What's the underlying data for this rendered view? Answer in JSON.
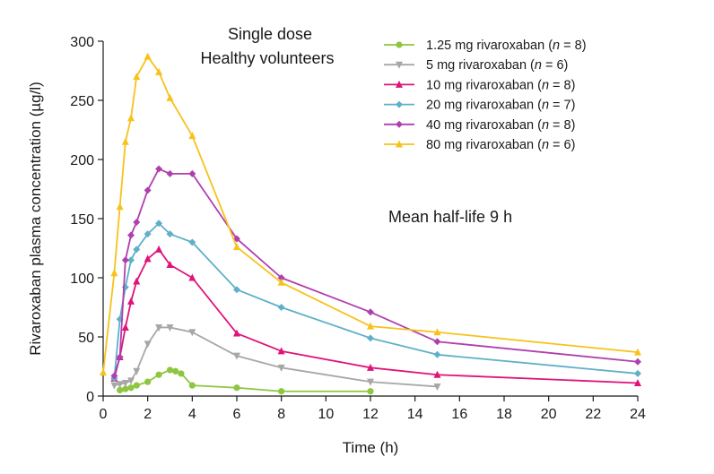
{
  "chart_data": {
    "type": "line",
    "xlabel": "Time (h)",
    "ylabel": "Rivaroxaban plasma concentration (µg/l)",
    "xlim": [
      0,
      24
    ],
    "ylim": [
      0,
      300
    ],
    "xticks": [
      0,
      2,
      4,
      6,
      8,
      10,
      12,
      14,
      16,
      18,
      20,
      22,
      24
    ],
    "yticks": [
      0,
      50,
      100,
      150,
      200,
      250,
      300
    ],
    "grid": false,
    "legend_position": "top-right",
    "annotations": [
      {
        "text": "Single dose"
      },
      {
        "text": "Healthy volunteers"
      },
      {
        "text": "Mean half-life 9 h"
      }
    ],
    "series": [
      {
        "name": "1.25 mg rivaroxaban (n = 8)",
        "label_main": "1.25 mg rivaroxaban (",
        "label_n": "n",
        "label_rest": " = 8)",
        "color": "#8dc63f",
        "marker": "circle",
        "x": [
          0.75,
          1,
          1.25,
          1.5,
          2,
          2.5,
          3,
          3.25,
          3.5,
          4,
          6,
          8,
          12
        ],
        "y": [
          5,
          6,
          7,
          9,
          12,
          18,
          22,
          21,
          19,
          9,
          7,
          4,
          4
        ]
      },
      {
        "name": "5 mg rivaroxaban (n = 6)",
        "label_main": "5 mg rivaroxaban (",
        "label_n": "n",
        "label_rest": " = 6)",
        "color": "#a7a7a7",
        "marker": "triangle-down",
        "x": [
          0.5,
          0.75,
          1,
          1.25,
          1.5,
          2,
          2.5,
          3,
          4,
          6,
          8,
          12,
          15
        ],
        "y": [
          9,
          10,
          11,
          13,
          21,
          44,
          58,
          58,
          54,
          34,
          24,
          12,
          8
        ]
      },
      {
        "name": "10 mg rivaroxaban (n = 8)",
        "label_main": "10 mg rivaroxaban (",
        "label_n": "n",
        "label_rest": " = 8)",
        "color": "#e0137a",
        "marker": "triangle-up",
        "x": [
          0.5,
          0.75,
          1,
          1.25,
          1.5,
          2,
          2.5,
          3,
          4,
          6,
          8,
          12,
          15,
          24
        ],
        "y": [
          15,
          33,
          58,
          80,
          97,
          116,
          124,
          111,
          100,
          53,
          38,
          24,
          18,
          11
        ]
      },
      {
        "name": "20 mg rivaroxaban (n = 7)",
        "label_main": "20 mg rivaroxaban (",
        "label_n": "n",
        "label_rest": " = 7)",
        "color": "#5fb0c8",
        "marker": "diamond",
        "x": [
          0.5,
          0.75,
          1,
          1.25,
          1.5,
          2,
          2.5,
          3,
          4,
          6,
          8,
          12,
          15,
          24
        ],
        "y": [
          15,
          65,
          92,
          115,
          124,
          137,
          146,
          137,
          130,
          90,
          75,
          49,
          35,
          19
        ]
      },
      {
        "name": "40 mg rivaroxaban (n = 8)",
        "label_main": "40 mg rivaroxaban (",
        "label_n": "n",
        "label_rest": " = 8)",
        "color": "#b03fae",
        "marker": "diamond",
        "x": [
          0.5,
          0.75,
          1,
          1.25,
          1.5,
          2,
          2.5,
          3,
          4,
          6,
          8,
          12,
          15,
          24
        ],
        "y": [
          17,
          33,
          115,
          136,
          147,
          174,
          192,
          188,
          188,
          133,
          100,
          71,
          46,
          29
        ]
      },
      {
        "name": "80 mg rivaroxaban (n = 6)",
        "label_main": "80 mg rivaroxaban (",
        "label_n": "n",
        "label_rest": " = 6)",
        "color": "#f7c21a",
        "marker": "triangle-up",
        "x": [
          0,
          0.5,
          0.75,
          1,
          1.25,
          1.5,
          2,
          2.5,
          3,
          4,
          6,
          8,
          12,
          15,
          24
        ],
        "y": [
          20,
          104,
          160,
          215,
          235,
          270,
          287,
          274,
          252,
          220,
          126,
          96,
          59,
          54,
          37
        ]
      }
    ]
  }
}
